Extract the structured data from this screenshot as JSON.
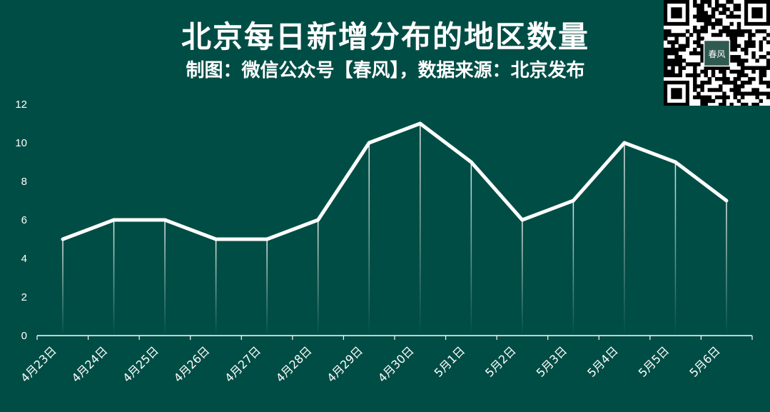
{
  "chart_data": {
    "type": "line",
    "title": "北京每日新增分布的地区数量",
    "subtitle": "制图：微信公众号【春风】，数据来源：北京发布",
    "categories": [
      "4月23日",
      "4月24日",
      "4月25日",
      "4月26日",
      "4月27日",
      "4月28日",
      "4月29日",
      "4月30日",
      "5月1日",
      "5月2日",
      "5月3日",
      "5月4日",
      "5月5日",
      "5月6日"
    ],
    "values": [
      5,
      6,
      6,
      5,
      5,
      6,
      10,
      11,
      9,
      6,
      7,
      10,
      9,
      7
    ],
    "ylim": [
      0,
      12
    ],
    "yticks": [
      0,
      2,
      4,
      6,
      8,
      10,
      12
    ],
    "grid": false,
    "drop_lines": true,
    "colors": {
      "background": "#004d45",
      "line": "#ffffff",
      "text": "#ffffff"
    }
  },
  "qr_code": {
    "center_text": "春风"
  }
}
